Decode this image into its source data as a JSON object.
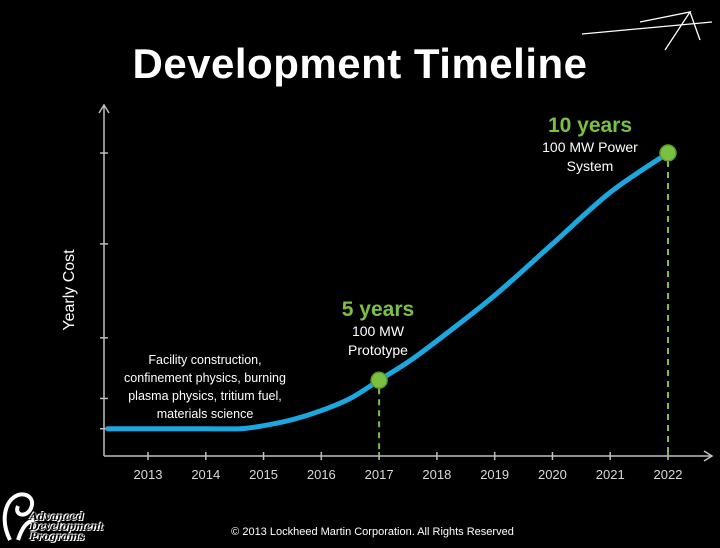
{
  "title": "Development Timeline",
  "footer": "© 2013 Lockheed Martin Corporation.  All Rights Reserved",
  "logo": {
    "line1": "Advanced",
    "line2": "Development",
    "line3": "Programs"
  },
  "chart_data": {
    "type": "line",
    "title": "Development Timeline",
    "xlabel": "",
    "ylabel": "Yearly Cost",
    "categories": [
      "2013",
      "2014",
      "2015",
      "2016",
      "2017",
      "2018",
      "2019",
      "2020",
      "2021",
      "2022"
    ],
    "x": [
      2012.3,
      2013,
      2014,
      2014.6,
      2015,
      2015.5,
      2016,
      2016.5,
      2017,
      2017.5,
      2018,
      2019,
      2020,
      2021,
      2022
    ],
    "y": [
      0.09,
      0.09,
      0.09,
      0.09,
      0.1,
      0.12,
      0.15,
      0.19,
      0.25,
      0.31,
      0.38,
      0.53,
      0.7,
      0.87,
      1.0
    ],
    "ylim": [
      0,
      1.1
    ],
    "grid": false,
    "milestones": [
      {
        "x": 2017,
        "y": 0.25,
        "label": "5 years",
        "desc_line1": "100 MW",
        "desc_line2": "Prototype"
      },
      {
        "x": 2022,
        "y": 1.0,
        "label": "10 years",
        "desc_line1": "100 MW Power",
        "desc_line2": "System"
      }
    ],
    "annotation": {
      "line1": "Facility construction,",
      "line2": "confinement physics, burning",
      "line3": "plasma physics, tritium fuel,",
      "line4": "materials science"
    },
    "colors": {
      "curve": "#1ba8e0",
      "milestone": "#7ac143",
      "axis": "#bfbfbf"
    }
  }
}
